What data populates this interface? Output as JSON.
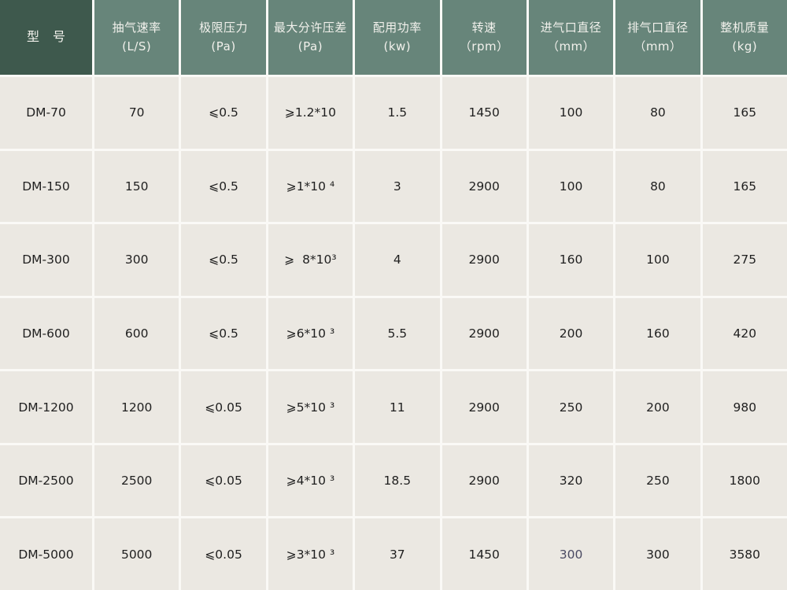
{
  "table": {
    "headers": [
      {
        "line1": "型 号",
        "line2": ""
      },
      {
        "line1": "抽气速率",
        "line2": "(L/S)"
      },
      {
        "line1": "极限压力",
        "line2": "(Pa)"
      },
      {
        "line1": "最大分许压差",
        "line2": "(Pa)"
      },
      {
        "line1": "配用功率",
        "line2": "(kw)"
      },
      {
        "line1": "转速",
        "line2": "（rpm）"
      },
      {
        "line1": "进气口直径",
        "line2": "（mm）"
      },
      {
        "line1": "排气口直径",
        "line2": "（mm）"
      },
      {
        "line1": "整机质量",
        "line2": "(kg)"
      }
    ],
    "rows": [
      [
        "DM-70",
        "70",
        "⩽0.5",
        "⩾1.2*10",
        "1.5",
        "1450",
        "100",
        "80",
        "165"
      ],
      [
        "DM-150",
        "150",
        "⩽0.5",
        "⩾1*10 ⁴",
        "3",
        "2900",
        "100",
        "80",
        "165"
      ],
      [
        "DM-300",
        "300",
        "⩽0.5",
        "⩾  8*10³",
        "4",
        "2900",
        "160",
        "100",
        "275"
      ],
      [
        "DM-600",
        "600",
        "⩽0.5",
        "⩾6*10 ³",
        "5.5",
        "2900",
        "200",
        "160",
        "420"
      ],
      [
        "DM-1200",
        "1200",
        "⩽0.05",
        "⩾5*10 ³",
        "11",
        "2900",
        "250",
        "200",
        "980"
      ],
      [
        "DM-2500",
        "2500",
        "⩽0.05",
        "⩾4*10 ³",
        "18.5",
        "2900",
        "320",
        "250",
        "1800"
      ],
      [
        "DM-5000",
        "5000",
        "⩽0.05",
        "⩾3*10 ³",
        "37",
        "1450",
        "300",
        "300",
        "3580"
      ]
    ],
    "special_cell": {
      "row": 6,
      "col": 6,
      "color": "#4A4A62"
    },
    "colors": {
      "header_first_bg": "#3E594D",
      "header_bg": "#67857A",
      "header_text": "#F2F1EC",
      "body_bg": "#EBE8E2",
      "grid_line": "#FAF9F6",
      "body_text": "#1F1F1F"
    }
  }
}
